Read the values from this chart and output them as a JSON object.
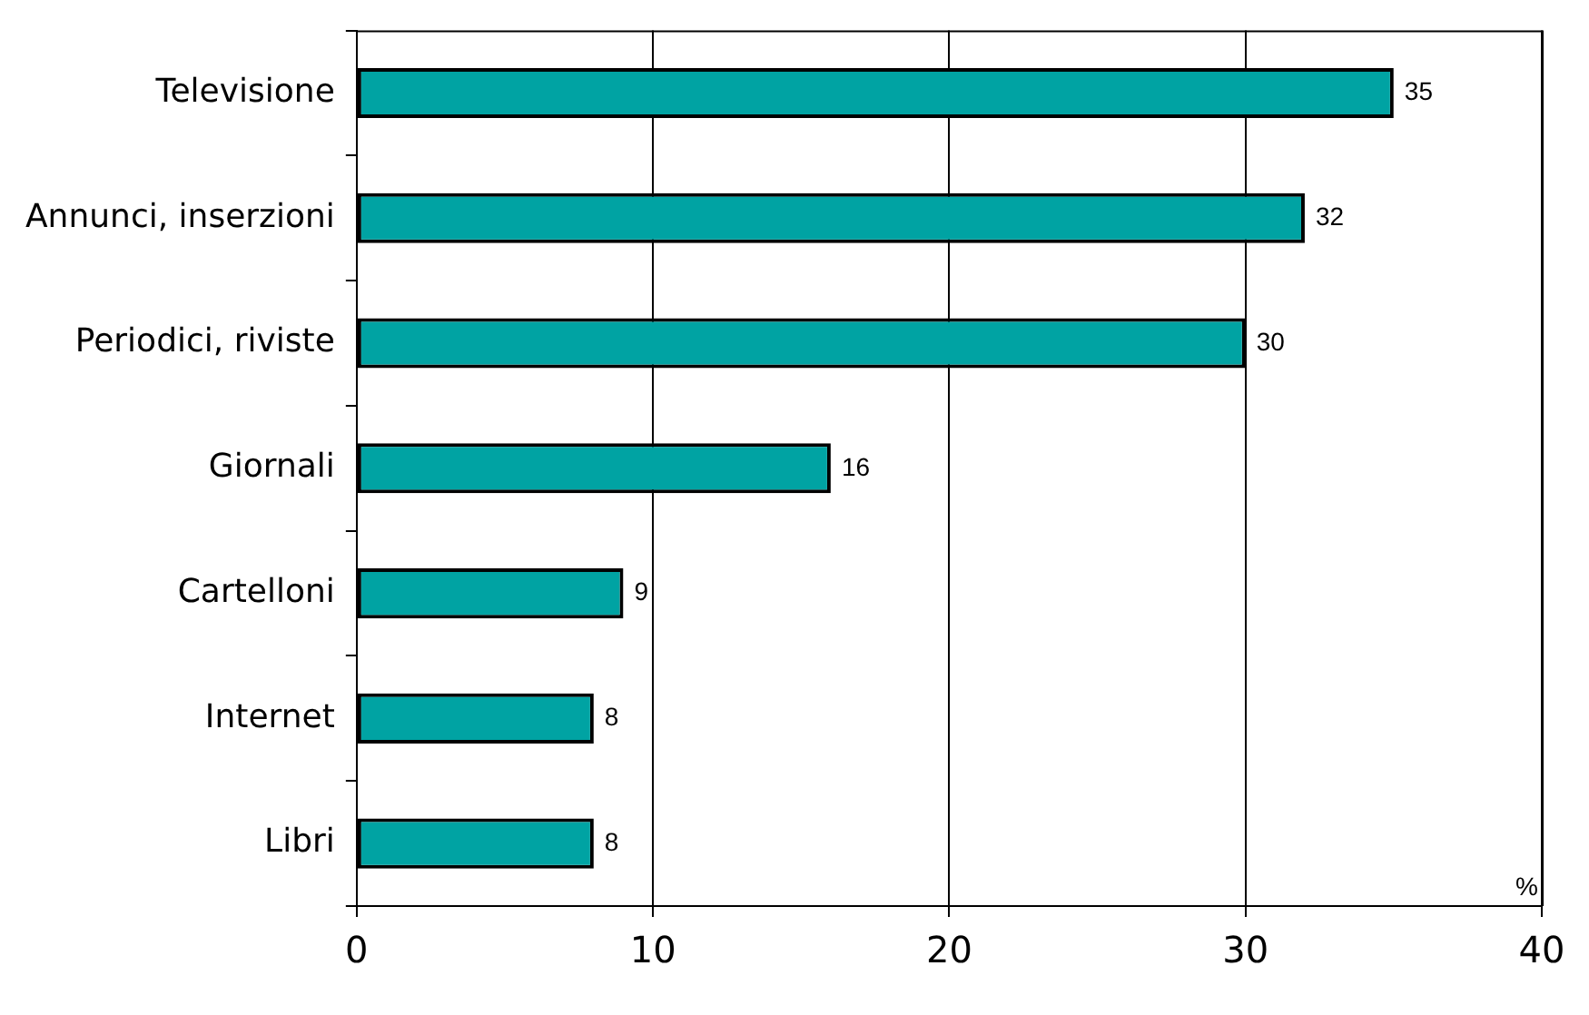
{
  "chart_data": {
    "type": "bar",
    "orientation": "horizontal",
    "xlabel": "%",
    "categories": [
      "Televisione",
      "Annunci, inserzioni",
      "Periodici, riviste",
      "Giornali",
      "Cartelloni",
      "Internet",
      "Libri"
    ],
    "values": [
      35,
      32,
      30,
      16,
      9,
      8,
      8
    ],
    "color": "#00a3a3",
    "xlim": [
      0,
      40
    ],
    "xticks": [
      0,
      10,
      20,
      30,
      40
    ],
    "grid": "x",
    "data_labels": true,
    "legend": false
  }
}
